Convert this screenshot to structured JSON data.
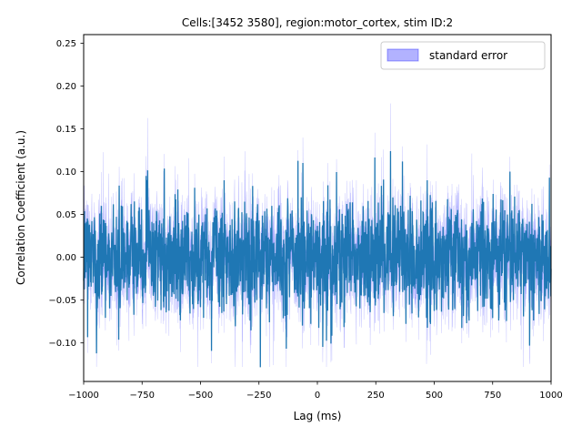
{
  "chart_data": {
    "type": "line",
    "title": "Cells:[3452 3580], region:motor_cortex, stim ID:2",
    "xlabel": "Lag (ms)",
    "ylabel": "Correlation Coefficient (a.u.)",
    "xlim": [
      -1000,
      1000
    ],
    "ylim": [
      -0.145,
      0.26
    ],
    "xticks": [
      -1000,
      -750,
      -500,
      -250,
      0,
      250,
      500,
      750,
      1000
    ],
    "xtick_labels": [
      "−1000",
      "−750",
      "−500",
      "−250",
      "0",
      "250",
      "500",
      "750",
      "1000"
    ],
    "yticks": [
      -0.1,
      -0.05,
      0.0,
      0.05,
      0.1,
      0.15,
      0.2,
      0.25
    ],
    "ytick_labels": [
      "−0.10",
      "−0.05",
      "0.00",
      "0.05",
      "0.10",
      "0.15",
      "0.20",
      "0.25"
    ],
    "grid": false,
    "legend_position": "upper right",
    "series": [
      {
        "kind": "mean-line",
        "color": "#1f77b4",
        "x_range": [
          -1000,
          1000
        ],
        "values": [
          [
            -1000,
            0.0
          ],
          [
            -950,
            0.02
          ],
          [
            -900,
            -0.01
          ],
          [
            -850,
            0.01
          ],
          [
            -800,
            -0.02
          ],
          [
            -750,
            0.0
          ],
          [
            -700,
            0.01
          ],
          [
            -650,
            -0.01
          ],
          [
            -600,
            0.02
          ],
          [
            -550,
            0.0
          ],
          [
            -500,
            -0.01
          ],
          [
            -450,
            0.01
          ],
          [
            -400,
            -0.02
          ],
          [
            -350,
            0.0
          ],
          [
            -300,
            0.01
          ],
          [
            -250,
            -0.01
          ],
          [
            -200,
            0.0
          ],
          [
            -150,
            0.01
          ],
          [
            -100,
            -0.01
          ],
          [
            -50,
            0.0
          ],
          [
            0,
            0.0
          ],
          [
            50,
            -0.01
          ],
          [
            100,
            0.01
          ],
          [
            150,
            0.0
          ],
          [
            200,
            -0.02
          ],
          [
            250,
            0.01
          ],
          [
            300,
            0.0
          ],
          [
            350,
            -0.01
          ],
          [
            400,
            0.01
          ],
          [
            450,
            0.0
          ],
          [
            500,
            -0.01
          ],
          [
            550,
            0.02
          ],
          [
            600,
            0.0
          ],
          [
            650,
            -0.01
          ],
          [
            700,
            0.01
          ],
          [
            750,
            0.0
          ],
          [
            800,
            -0.01
          ],
          [
            850,
            0.01
          ],
          [
            900,
            0.03
          ],
          [
            950,
            0.0
          ],
          [
            1000,
            0.0
          ]
        ]
      },
      {
        "kind": "error-band",
        "name": "standard error",
        "color": "#0000ff"
      }
    ],
    "legend": [
      {
        "label": "standard error",
        "color": "#0000ff"
      }
    ]
  }
}
